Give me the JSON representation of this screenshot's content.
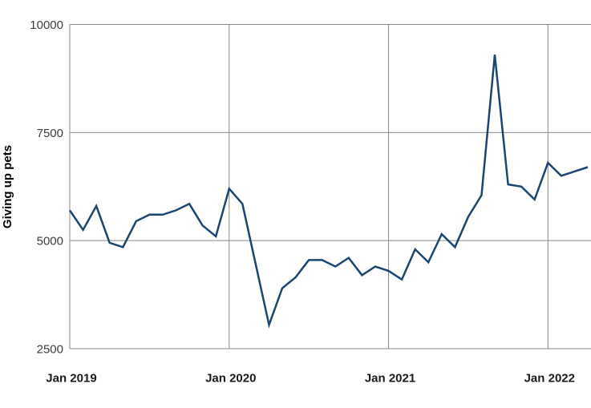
{
  "chart_data": {
    "type": "line",
    "title": "",
    "ylabel": "Giving up pets",
    "xlabel": "",
    "ylim": [
      2500,
      10000
    ],
    "y_ticks": [
      10000,
      7500,
      5000,
      2500
    ],
    "x_tick_labels": [
      "Jan 2019",
      "Jan 2020",
      "Jan 2021",
      "Jan 2022"
    ],
    "x_tick_indices": [
      0,
      12,
      24,
      36
    ],
    "grid": true,
    "legend": "none",
    "categories": [
      "Jan 2019",
      "Feb 2019",
      "Mar 2019",
      "Apr 2019",
      "May 2019",
      "Jun 2019",
      "Jul 2019",
      "Aug 2019",
      "Sep 2019",
      "Oct 2019",
      "Nov 2019",
      "Dec 2019",
      "Jan 2020",
      "Feb 2020",
      "Mar 2020",
      "Apr 2020",
      "May 2020",
      "Jun 2020",
      "Jul 2020",
      "Aug 2020",
      "Sep 2020",
      "Oct 2020",
      "Nov 2020",
      "Dec 2020",
      "Jan 2021",
      "Feb 2021",
      "Mar 2021",
      "Apr 2021",
      "May 2021",
      "Jun 2021",
      "Jul 2021",
      "Aug 2021",
      "Sep 2021",
      "Oct 2021",
      "Nov 2021",
      "Dec 2021",
      "Jan 2022",
      "Feb 2022",
      "Mar 2022",
      "Apr 2022"
    ],
    "values": [
      5700,
      5250,
      5800,
      4950,
      4850,
      5450,
      5600,
      5600,
      5700,
      5850,
      5350,
      5100,
      6200,
      5850,
      4450,
      3050,
      3900,
      4150,
      4550,
      4550,
      4400,
      4600,
      4200,
      4400,
      4300,
      4100,
      4800,
      4500,
      5150,
      4850,
      5550,
      6050,
      9300,
      6300,
      6250,
      5950,
      6800,
      6500,
      6600,
      6700
    ],
    "line_color": "#1b4672",
    "grid_color": "#8a8a8a",
    "tick_label_color": "#3d3d3d",
    "x_label_color": "#1a1a1a"
  }
}
